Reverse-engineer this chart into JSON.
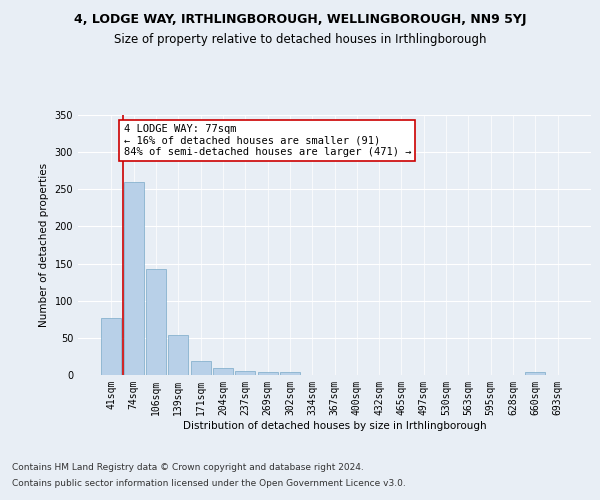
{
  "title": "4, LODGE WAY, IRTHLINGBOROUGH, WELLINGBOROUGH, NN9 5YJ",
  "subtitle": "Size of property relative to detached houses in Irthlingborough",
  "xlabel": "Distribution of detached houses by size in Irthlingborough",
  "ylabel": "Number of detached properties",
  "categories": [
    "41sqm",
    "74sqm",
    "106sqm",
    "139sqm",
    "171sqm",
    "204sqm",
    "237sqm",
    "269sqm",
    "302sqm",
    "334sqm",
    "367sqm",
    "400sqm",
    "432sqm",
    "465sqm",
    "497sqm",
    "530sqm",
    "563sqm",
    "595sqm",
    "628sqm",
    "660sqm",
    "693sqm"
  ],
  "values": [
    77,
    260,
    143,
    54,
    19,
    10,
    5,
    4,
    4,
    0,
    0,
    0,
    0,
    0,
    0,
    0,
    0,
    0,
    0,
    4,
    0
  ],
  "bar_color": "#b8d0e8",
  "bar_edge_color": "#7aaac8",
  "annotation_text": "4 LODGE WAY: 77sqm\n← 16% of detached houses are smaller (91)\n84% of semi-detached houses are larger (471) →",
  "annotation_box_color": "#ffffff",
  "annotation_box_edge_color": "#cc0000",
  "annotation_line_color": "#cc0000",
  "ylim": [
    0,
    350
  ],
  "yticks": [
    0,
    50,
    100,
    150,
    200,
    250,
    300,
    350
  ],
  "background_color": "#e8eef5",
  "plot_background_color": "#e8eef5",
  "footer_line1": "Contains HM Land Registry data © Crown copyright and database right 2024.",
  "footer_line2": "Contains public sector information licensed under the Open Government Licence v3.0.",
  "title_fontsize": 9,
  "subtitle_fontsize": 8.5,
  "axis_fontsize": 7.5,
  "tick_fontsize": 7,
  "footer_fontsize": 6.5,
  "annotation_fontsize": 7.5
}
